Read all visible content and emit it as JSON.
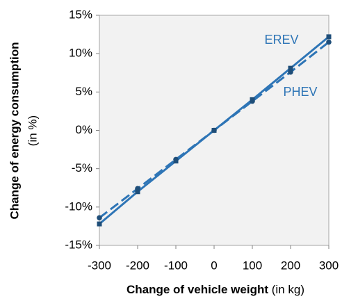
{
  "chart_data": {
    "type": "line",
    "ylabel": {
      "main": "Change  of energy  consumption",
      "unit": "(in %)"
    },
    "xlabel": {
      "main": "Change of vehicle weight",
      "unit": "(in kg)"
    },
    "x": [
      -300,
      -200,
      -100,
      0,
      100,
      200,
      300
    ],
    "series": [
      {
        "name": "EREV",
        "color": "#2e75b6",
        "marker_color": "#1f4e79",
        "dashed": false,
        "marker": "square",
        "values": [
          -12.2,
          -8.0,
          -4.0,
          0,
          4.0,
          8.1,
          12.2
        ]
      },
      {
        "name": "PHEV",
        "color": "#2e75b6",
        "marker_color": "#1f4e79",
        "dashed": true,
        "marker": "circle",
        "values": [
          -11.4,
          -7.6,
          -3.8,
          0,
          3.8,
          7.6,
          11.5
        ]
      }
    ],
    "xlim": [
      -300,
      300
    ],
    "xticks": [
      -300,
      -200,
      -100,
      0,
      100,
      200,
      300
    ],
    "ylim": [
      -15,
      15
    ],
    "yticks": [
      {
        "value": -15,
        "label": "-15%"
      },
      {
        "value": -10,
        "label": "-10%"
      },
      {
        "value": -5,
        "label": "-5%"
      },
      {
        "value": 0,
        "label": "0%"
      },
      {
        "value": 5,
        "label": "5%"
      },
      {
        "value": 10,
        "label": "10%"
      },
      {
        "value": 15,
        "label": "15%"
      }
    ],
    "grid": false
  }
}
